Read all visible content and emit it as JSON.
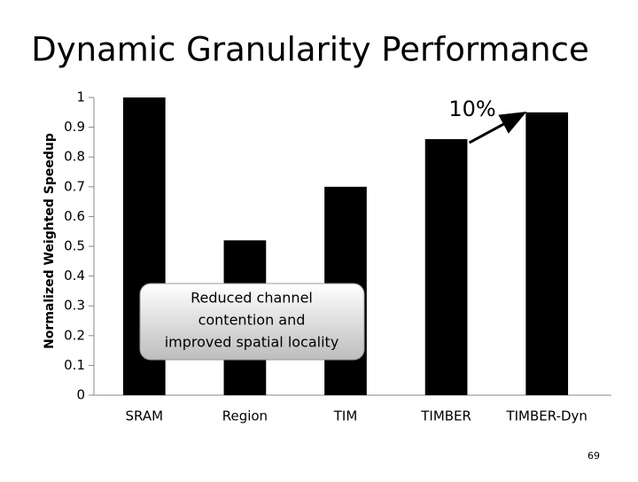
{
  "chart_data": {
    "type": "bar",
    "title": "Dynamic Granularity Performance",
    "y_label": "Normalized Weighted Speedup",
    "categories": [
      "SRAM",
      "Region",
      "TIM",
      "TIMBER",
      "TIMBER-Dyn"
    ],
    "values": [
      1.0,
      0.52,
      0.7,
      0.86,
      0.95
    ],
    "color": "#000000",
    "ylim": [
      0,
      1
    ],
    "yticks": [
      0,
      0.1,
      0.2,
      0.3,
      0.4,
      0.5,
      0.6,
      0.7,
      0.8,
      0.9,
      1
    ],
    "grid": false,
    "annotation": "10%",
    "callout": [
      "Reduced channel",
      "contention and",
      "improved spatial locality"
    ]
  },
  "page_number": "69"
}
